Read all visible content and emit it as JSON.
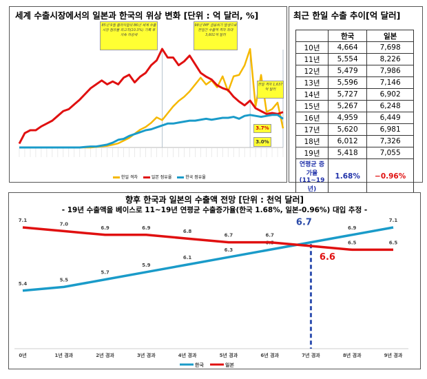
{
  "top_chart": {
    "title": "세계 수출시장에서의 일본과 한국의 위상 변화 [단위 : 억 달러, %]",
    "notes": [
      "85년 9월 플라자합의 86년 세계 수출시장 점유율 최고치(10.3%) 기록 후 지속 하강세",
      "98년 IMF 금융위기 발생으로 한일간 수출액 격차 최대 3,601억 달러",
      "한일 격차 1,637억 달러",
      "3.7%",
      "3.0%"
    ],
    "legend": [
      "한일 격차",
      "일본 점유율",
      "한국 점유율"
    ],
    "colors": {
      "gap": "#f5b800",
      "japan": "#e01010",
      "korea": "#1a9bc9"
    }
  },
  "chart_data": [
    {
      "type": "line",
      "title": "세계 수출시장에서의 일본과 한국의 위상 변화 [단위 : 억 달러, %]",
      "series": [
        {
          "name": "한일 격차",
          "values": [
            0,
            0,
            0,
            0,
            0,
            0,
            0,
            0,
            0,
            0,
            0,
            0,
            0,
            0,
            20,
            40,
            60,
            100,
            150,
            250,
            350,
            500,
            650,
            750,
            900,
            1100,
            1000,
            1250,
            1500,
            1700,
            1850,
            2050,
            2300,
            2550,
            2300,
            2450,
            2200,
            2600,
            2050,
            2600,
            2650,
            3000,
            3601,
            1500,
            2650,
            1300,
            1400,
            1637,
            700
          ]
        },
        {
          "name": "일본 점유율",
          "values": [
            0.4,
            1.5,
            1.8,
            1.8,
            2.2,
            2.5,
            2.8,
            3.3,
            3.8,
            4.0,
            4.5,
            5.0,
            5.6,
            6.2,
            6.6,
            7.0,
            6.6,
            6.9,
            6.6,
            7.3,
            7.6,
            6.8,
            7.4,
            7.8,
            8.6,
            9.1,
            10.3,
            9.4,
            9.4,
            8.6,
            9.0,
            9.6,
            8.7,
            7.8,
            7.4,
            7.1,
            6.5,
            6.2,
            6.0,
            5.3,
            4.8,
            4.4,
            4.9,
            4.1,
            3.8,
            3.5,
            3.6,
            3.5,
            3.7
          ]
        },
        {
          "name": "한국 점유율",
          "values": [
            0,
            0,
            0,
            0,
            0,
            0,
            0,
            0,
            0,
            0,
            0,
            0,
            0.05,
            0.1,
            0.1,
            0.2,
            0.3,
            0.5,
            0.8,
            0.9,
            1.2,
            1.4,
            1.6,
            1.8,
            1.9,
            2.1,
            2.3,
            2.5,
            2.5,
            2.6,
            2.7,
            2.8,
            2.8,
            2.9,
            3.0,
            2.9,
            3.0,
            3.1,
            3.1,
            3.2,
            3.0,
            3.3,
            3.4,
            3.3,
            3.2,
            3.3,
            3.4,
            3.4,
            3.0
          ]
        }
      ],
      "legend": "bottom"
    },
    {
      "type": "line",
      "title": "향후 한국과 일본의 수출액 전망 [단위 : 천억 달러]",
      "subtitle": "- 19년 수출액을 베이스로 11~19년 연평균 수출증가율(한국 1.68%, 일본-0.96%) 대입 추정 -",
      "categories": [
        "0년",
        "1년 경과",
        "2년 경과",
        "3년 경과",
        "4년 경과",
        "5년 경과",
        "6년 경과",
        "7년 경과",
        "8년 경과",
        "9년 경과"
      ],
      "series": [
        {
          "name": "한국",
          "color": "#1a9bc9",
          "values": [
            5.4,
            5.5,
            5.7,
            5.9,
            6.1,
            6.3,
            6.5,
            6.7,
            6.9,
            7.1
          ]
        },
        {
          "name": "일본",
          "color": "#e01010",
          "values": [
            7.1,
            7.0,
            6.9,
            6.9,
            6.8,
            6.7,
            6.7,
            6.6,
            6.5,
            6.5
          ]
        }
      ],
      "callouts": [
        "6.7",
        "6.6"
      ],
      "legend": "bottom"
    }
  ],
  "table": {
    "title": "최근 한일 수출 추이[억 달러]",
    "headers": [
      "",
      "한국",
      "일본"
    ],
    "rows": [
      [
        "10년",
        "4,664",
        "7,698"
      ],
      [
        "11년",
        "5,554",
        "8,226"
      ],
      [
        "12년",
        "5,479",
        "7,986"
      ],
      [
        "13년",
        "5,596",
        "7,146"
      ],
      [
        "14년",
        "5,727",
        "6,902"
      ],
      [
        "15년",
        "5,267",
        "6,248"
      ],
      [
        "16년",
        "4,959",
        "6,449"
      ],
      [
        "17년",
        "5,620",
        "6,981"
      ],
      [
        "18년",
        "6,012",
        "7,326"
      ],
      [
        "19년",
        "5,418",
        "7,055"
      ]
    ],
    "footer": {
      "label": "연평균 증가율 (11~19년)",
      "korea": "1.68%",
      "japan": "−0.96%"
    }
  }
}
